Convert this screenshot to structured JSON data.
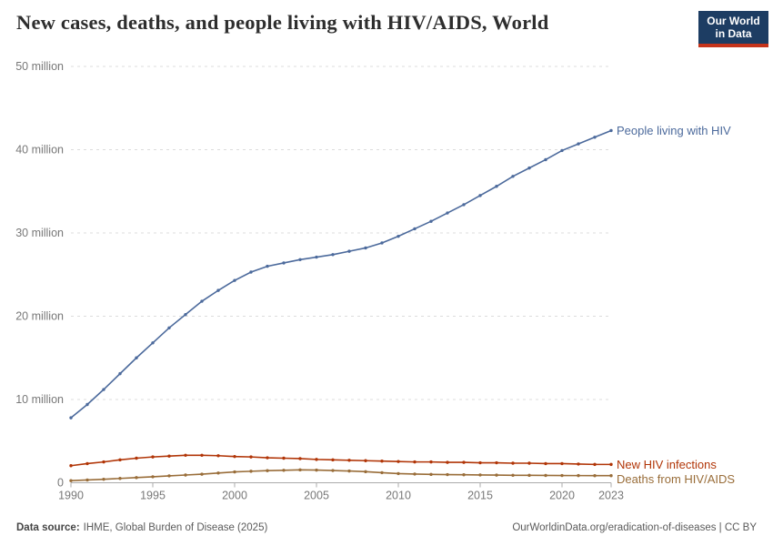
{
  "header": {
    "title": "New cases, deaths, and people living with HIV/AIDS, World",
    "logo": {
      "line1": "Our World",
      "line2": "in Data"
    }
  },
  "colors": {
    "logo_bg": "#1D3D63",
    "logo_stripe": "#C5341B"
  },
  "footer": {
    "source_label": "Data source:",
    "source_text": "IHME, Global Burden of Disease (2025)",
    "right_text": "OurWorldinData.org/eradication-of-diseases | CC BY"
  },
  "chart_data": {
    "type": "line",
    "title": "New cases, deaths, and people living with HIV/AIDS, World",
    "unit": "million",
    "ylim": [
      0,
      50
    ],
    "grid": "horizontal dashed",
    "legend_position": "end-of-line labels",
    "x": [
      1990,
      1991,
      1992,
      1993,
      1994,
      1995,
      1996,
      1997,
      1998,
      1999,
      2000,
      2001,
      2002,
      2003,
      2004,
      2005,
      2006,
      2007,
      2008,
      2009,
      2010,
      2011,
      2012,
      2013,
      2014,
      2015,
      2016,
      2017,
      2018,
      2019,
      2020,
      2021,
      2022,
      2023
    ],
    "xticks": [
      1990,
      1995,
      2000,
      2005,
      2010,
      2015,
      2020,
      2023
    ],
    "yticks": [
      {
        "value": 0,
        "label": "0"
      },
      {
        "value": 10,
        "label": "10 million"
      },
      {
        "value": 20,
        "label": "20 million"
      },
      {
        "value": 30,
        "label": "30 million"
      },
      {
        "value": 40,
        "label": "40 million"
      },
      {
        "value": 50,
        "label": "50 million"
      }
    ],
    "series": [
      {
        "name": "People living with HIV",
        "color": "#4C6A9C",
        "values": [
          7.8,
          9.4,
          11.2,
          13.1,
          15.0,
          16.8,
          18.6,
          20.2,
          21.8,
          23.1,
          24.3,
          25.3,
          26.0,
          26.4,
          26.8,
          27.1,
          27.4,
          27.8,
          28.2,
          28.8,
          29.6,
          30.5,
          31.4,
          32.4,
          33.4,
          34.5,
          35.6,
          36.8,
          37.8,
          38.8,
          39.9,
          40.7,
          41.5,
          42.3
        ]
      },
      {
        "name": "New HIV infections",
        "color": "#B13507",
        "values": [
          2.05,
          2.3,
          2.5,
          2.75,
          2.95,
          3.1,
          3.2,
          3.3,
          3.3,
          3.25,
          3.15,
          3.1,
          3.0,
          2.95,
          2.9,
          2.8,
          2.75,
          2.7,
          2.65,
          2.6,
          2.55,
          2.5,
          2.5,
          2.45,
          2.45,
          2.4,
          2.4,
          2.35,
          2.35,
          2.3,
          2.3,
          2.25,
          2.2,
          2.2
        ]
      },
      {
        "name": "Deaths from HIV/AIDS",
        "color": "#996D39",
        "values": [
          0.25,
          0.33,
          0.42,
          0.52,
          0.62,
          0.72,
          0.83,
          0.93,
          1.03,
          1.17,
          1.3,
          1.38,
          1.45,
          1.5,
          1.55,
          1.52,
          1.47,
          1.41,
          1.33,
          1.21,
          1.1,
          1.05,
          1.0,
          0.98,
          0.96,
          0.94,
          0.92,
          0.9,
          0.89,
          0.88,
          0.87,
          0.86,
          0.85,
          0.85
        ]
      }
    ]
  }
}
